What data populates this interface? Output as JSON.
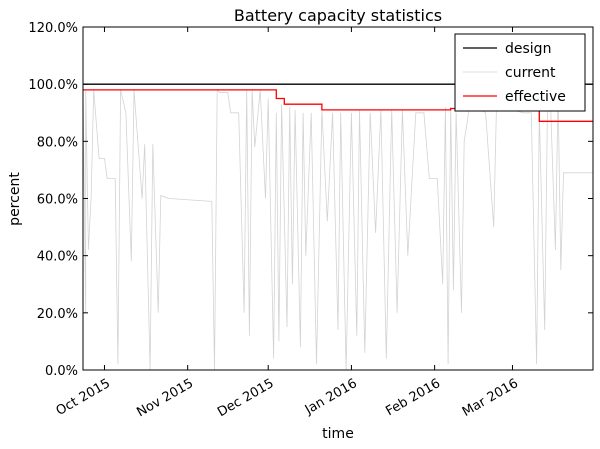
{
  "chart_data": {
    "type": "line",
    "title": "Battery capacity statistics",
    "xlabel": "time",
    "ylabel": "percent",
    "ylim": [
      0,
      120
    ],
    "xlim": [
      "2015-09-23",
      "2016-03-31"
    ],
    "grid": false,
    "legend_position": "top-right",
    "y_ticks": [
      {
        "value": 0,
        "label": "0.0%"
      },
      {
        "value": 20,
        "label": "20.0%"
      },
      {
        "value": 40,
        "label": "40.0%"
      },
      {
        "value": 60,
        "label": "60.0%"
      },
      {
        "value": 80,
        "label": "80.0%"
      },
      {
        "value": 100,
        "label": "100.0%"
      },
      {
        "value": 120,
        "label": "120.0%"
      }
    ],
    "x_ticks": [
      {
        "value": "2015-10-01",
        "label": "Oct 2015"
      },
      {
        "value": "2015-11-01",
        "label": "Nov 2015"
      },
      {
        "value": "2015-12-01",
        "label": "Dec 2015"
      },
      {
        "value": "2016-01-01",
        "label": "Jan 2016"
      },
      {
        "value": "2016-02-01",
        "label": "Feb 2016"
      },
      {
        "value": "2016-03-01",
        "label": "Mar 2016"
      }
    ],
    "series": [
      {
        "name": "design",
        "color": "#000000",
        "style": "line",
        "points": [
          [
            "2015-09-23",
            100
          ],
          [
            "2016-03-31",
            100
          ]
        ]
      },
      {
        "name": "current",
        "color": "#d3d3d3",
        "style": "line",
        "points": [
          [
            "2015-09-23",
            97
          ],
          [
            "2015-09-24",
            20
          ],
          [
            "2015-09-24",
            98
          ],
          [
            "2015-09-25",
            42
          ],
          [
            "2015-09-26",
            60
          ],
          [
            "2015-09-27",
            98
          ],
          [
            "2015-09-29",
            74
          ],
          [
            "2015-10-01",
            74
          ],
          [
            "2015-10-02",
            67
          ],
          [
            "2015-10-05",
            67
          ],
          [
            "2015-10-06",
            2
          ],
          [
            "2015-10-07",
            98
          ],
          [
            "2015-10-09",
            90
          ],
          [
            "2015-10-11",
            38
          ],
          [
            "2015-10-12",
            98
          ],
          [
            "2015-10-15",
            60
          ],
          [
            "2015-10-16",
            79
          ],
          [
            "2015-10-18",
            0
          ],
          [
            "2015-10-19",
            79
          ],
          [
            "2015-10-21",
            20
          ],
          [
            "2015-10-22",
            61
          ],
          [
            "2015-10-25",
            60
          ],
          [
            "2015-11-10",
            59
          ],
          [
            "2015-11-11",
            0
          ],
          [
            "2015-11-12",
            98
          ],
          [
            "2015-11-13",
            97
          ],
          [
            "2015-11-16",
            97
          ],
          [
            "2015-11-17",
            90
          ],
          [
            "2015-11-20",
            90
          ],
          [
            "2015-11-22",
            20
          ],
          [
            "2015-11-23",
            98
          ],
          [
            "2015-11-24",
            12
          ],
          [
            "2015-11-25",
            98
          ],
          [
            "2015-11-26",
            78
          ],
          [
            "2015-11-28",
            98
          ],
          [
            "2015-11-30",
            60
          ],
          [
            "2015-12-01",
            95
          ],
          [
            "2015-12-03",
            4
          ],
          [
            "2015-12-04",
            90
          ],
          [
            "2015-12-05",
            10
          ],
          [
            "2015-12-06",
            93
          ],
          [
            "2015-12-08",
            15
          ],
          [
            "2015-12-09",
            92
          ],
          [
            "2015-12-10",
            30
          ],
          [
            "2015-12-11",
            91
          ],
          [
            "2015-12-13",
            8
          ],
          [
            "2015-12-14",
            90
          ],
          [
            "2015-12-15",
            40
          ],
          [
            "2015-12-17",
            90
          ],
          [
            "2015-12-19",
            2
          ],
          [
            "2015-12-21",
            91
          ],
          [
            "2015-12-23",
            52
          ],
          [
            "2015-12-25",
            90
          ],
          [
            "2015-12-27",
            14
          ],
          [
            "2015-12-28",
            90
          ],
          [
            "2015-12-30",
            0
          ],
          [
            "2016-01-01",
            90
          ],
          [
            "2016-01-03",
            12
          ],
          [
            "2016-01-04",
            91
          ],
          [
            "2016-01-06",
            6
          ],
          [
            "2016-01-08",
            90
          ],
          [
            "2016-01-10",
            48
          ],
          [
            "2016-01-12",
            91
          ],
          [
            "2016-01-14",
            4
          ],
          [
            "2016-01-16",
            91
          ],
          [
            "2016-01-18",
            20
          ],
          [
            "2016-01-20",
            91
          ],
          [
            "2016-01-22",
            40
          ],
          [
            "2016-01-25",
            90
          ],
          [
            "2016-01-28",
            90
          ],
          [
            "2016-01-30",
            67
          ],
          [
            "2016-02-02",
            67
          ],
          [
            "2016-02-04",
            30
          ],
          [
            "2016-02-05",
            92
          ],
          [
            "2016-02-06",
            2
          ],
          [
            "2016-02-07",
            92
          ],
          [
            "2016-02-08",
            28
          ],
          [
            "2016-02-09",
            90
          ],
          [
            "2016-02-11",
            20
          ],
          [
            "2016-02-12",
            80
          ],
          [
            "2016-02-14",
            92
          ],
          [
            "2016-02-17",
            92
          ],
          [
            "2016-02-20",
            90
          ],
          [
            "2016-02-23",
            50
          ],
          [
            "2016-02-24",
            91
          ],
          [
            "2016-03-01",
            91
          ],
          [
            "2016-03-05",
            90
          ],
          [
            "2016-03-08",
            90
          ],
          [
            "2016-03-10",
            2
          ],
          [
            "2016-03-11",
            90
          ],
          [
            "2016-03-13",
            14
          ],
          [
            "2016-03-14",
            90
          ],
          [
            "2016-03-15",
            98
          ],
          [
            "2016-03-17",
            42
          ],
          [
            "2016-03-18",
            97
          ],
          [
            "2016-03-19",
            35
          ],
          [
            "2016-03-20",
            69
          ],
          [
            "2016-03-31",
            69
          ]
        ]
      },
      {
        "name": "effective",
        "color": "#ff0000",
        "style": "step",
        "points": [
          [
            "2015-09-23",
            98
          ],
          [
            "2015-12-04",
            98
          ],
          [
            "2015-12-04",
            95
          ],
          [
            "2015-12-07",
            95
          ],
          [
            "2015-12-07",
            93
          ],
          [
            "2015-12-21",
            93
          ],
          [
            "2015-12-21",
            91
          ],
          [
            "2016-02-07",
            91
          ],
          [
            "2016-02-07",
            91.5
          ],
          [
            "2016-02-10",
            91.5
          ],
          [
            "2016-02-10",
            91
          ],
          [
            "2016-03-11",
            91
          ],
          [
            "2016-03-11",
            87
          ],
          [
            "2016-03-31",
            87
          ]
        ]
      }
    ]
  }
}
